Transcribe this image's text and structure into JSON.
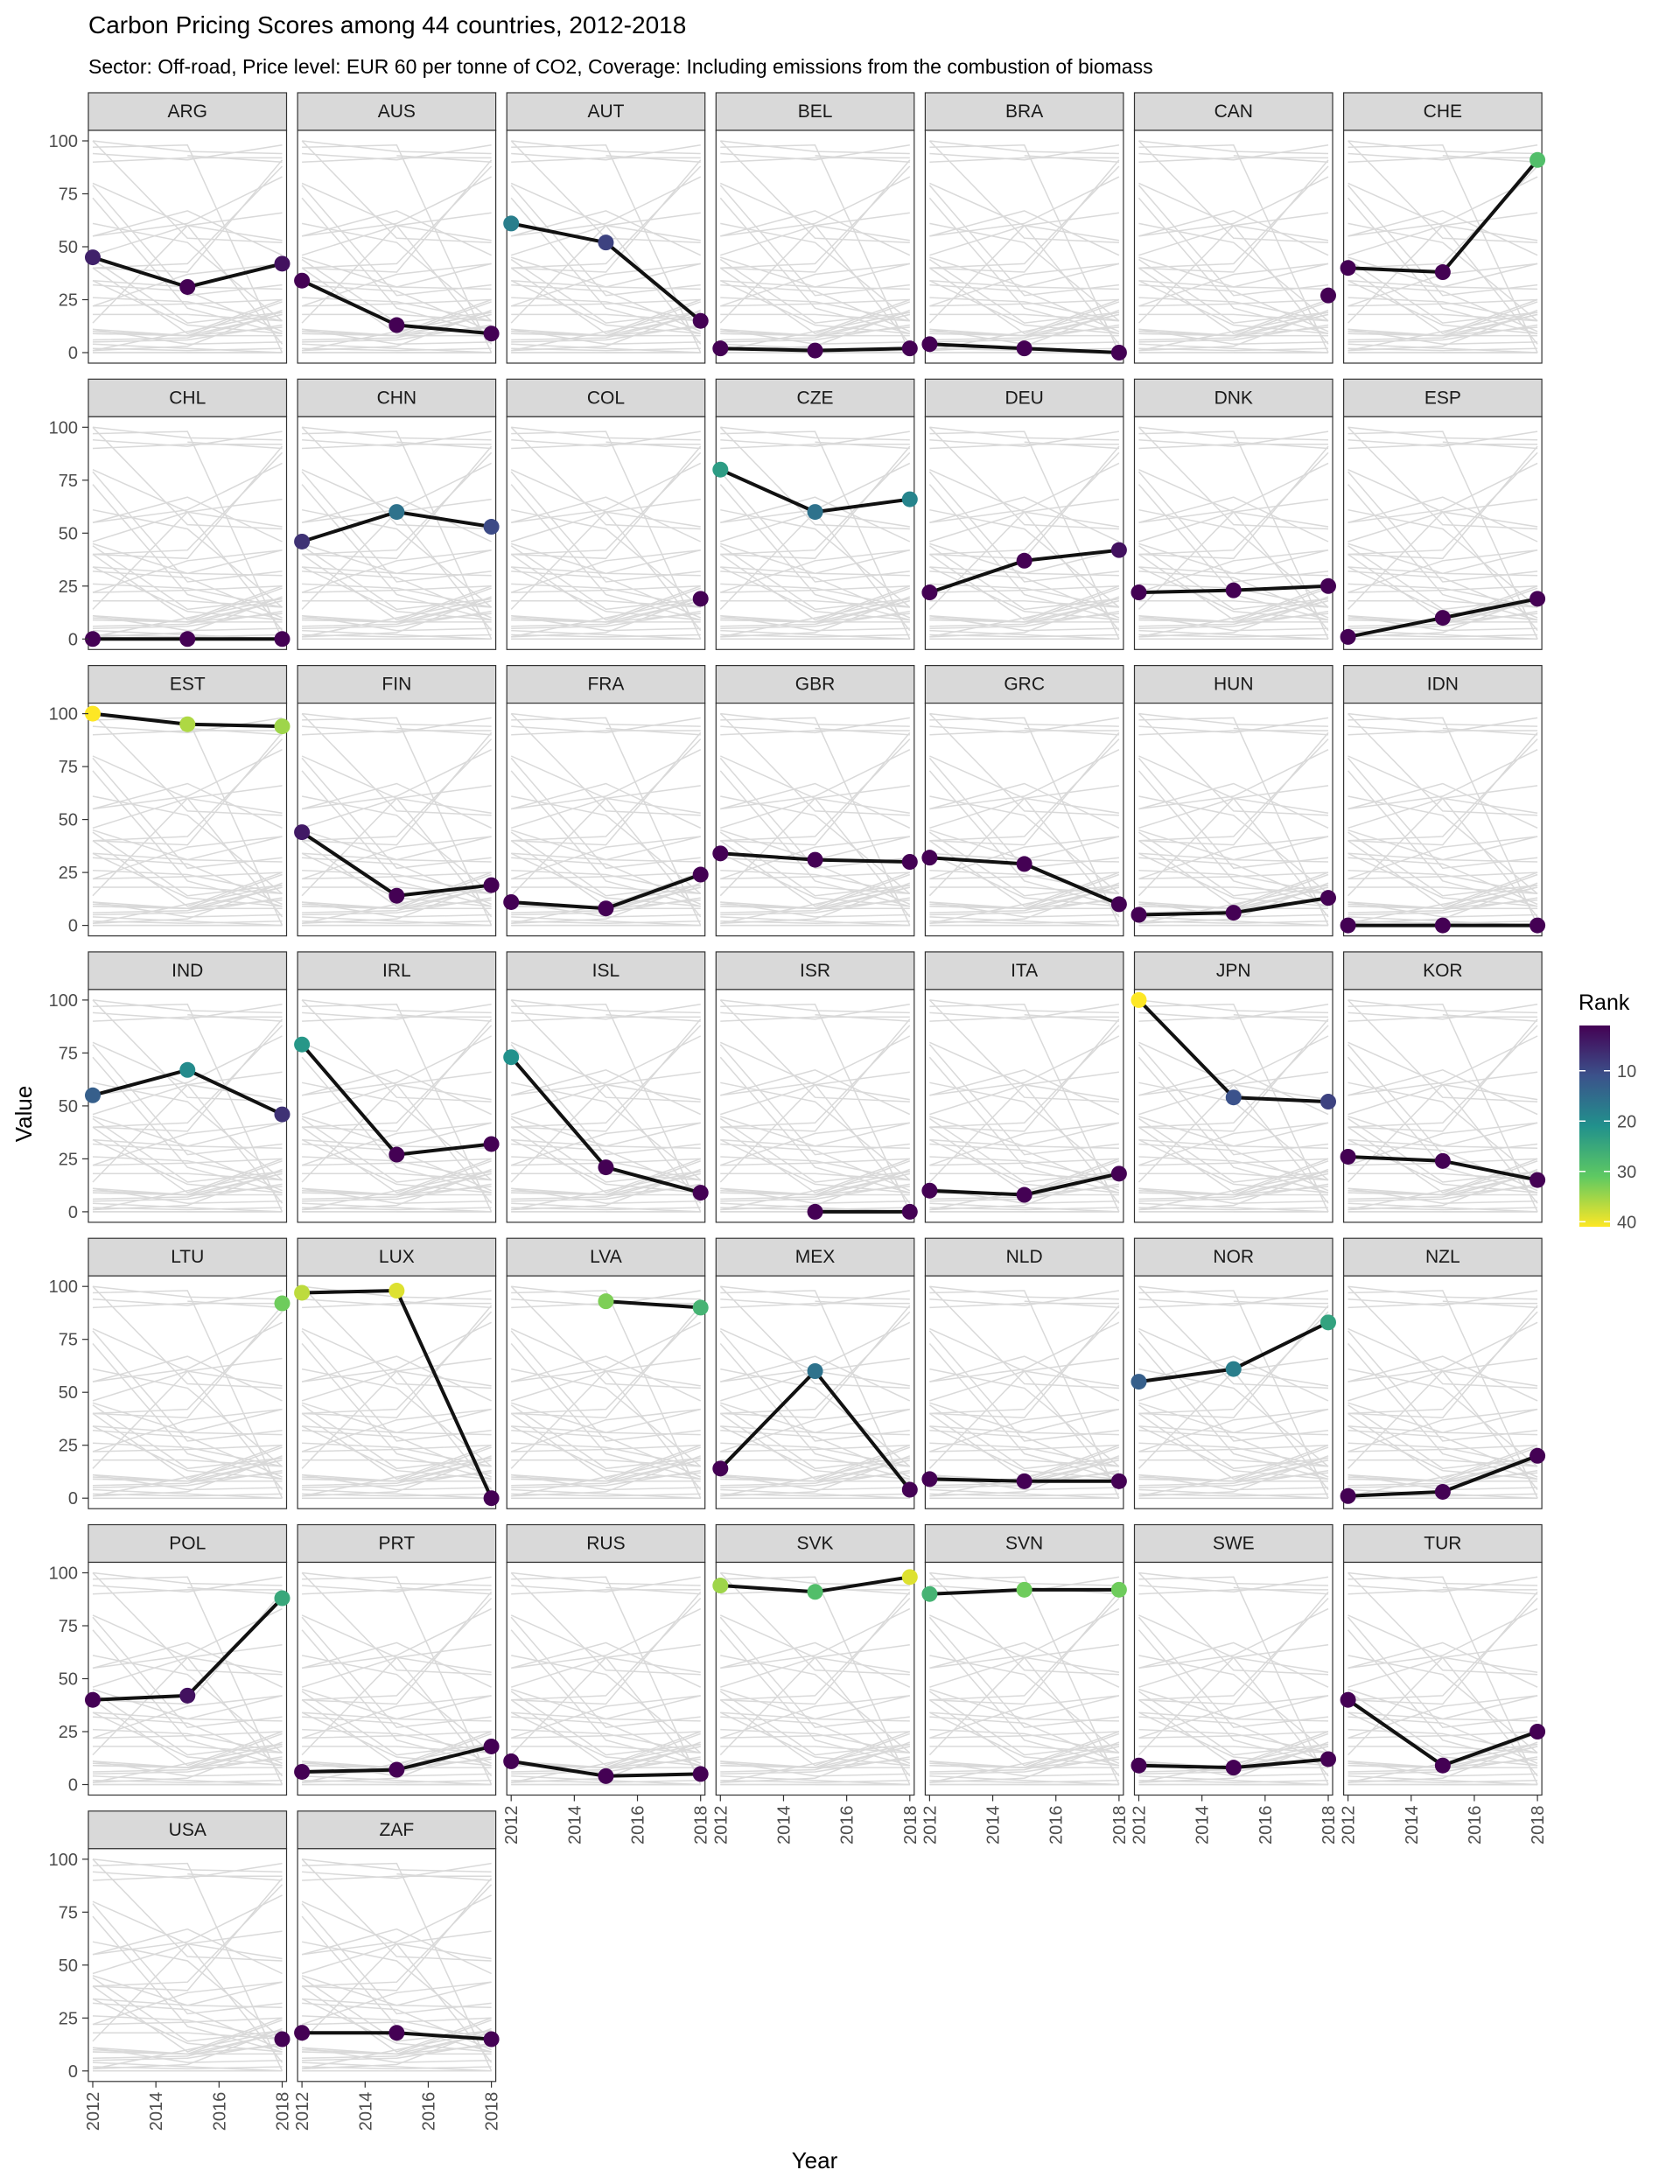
{
  "chart_data": {
    "type": "line",
    "title": "Carbon Pricing Scores among 44 countries, 2012-2018",
    "subtitle": "Sector: Off-road, Price level: EUR 60 per tonne of CO2, Coverage: Including emissions from the combustion of biomass",
    "xlabel": "Year",
    "ylabel": "Value",
    "x": [
      2012,
      2015,
      2018
    ],
    "x_ticks": [
      "2012",
      "2014",
      "2016",
      "2018"
    ],
    "xlim": [
      2012,
      2018
    ],
    "y_ticks": [
      "0",
      "25",
      "50",
      "75",
      "100"
    ],
    "ylim": [
      0,
      100
    ],
    "grid": false,
    "legend": {
      "title": "Rank",
      "placement": "right",
      "ticks": [
        "10",
        "20",
        "30",
        "40"
      ],
      "range": [
        1,
        41
      ],
      "colors": [
        "#fde725",
        "#5ec962",
        "#21918c",
        "#3b528b",
        "#440154"
      ]
    },
    "background_line_color": "#d9d9d9",
    "highlight_line_color": "#111111",
    "facet_strip_color": "#d9d9d9",
    "panels": [
      {
        "label": "ARG",
        "values": [
          45,
          31,
          42
        ]
      },
      {
        "label": "AUS",
        "values": [
          34,
          13,
          9
        ]
      },
      {
        "label": "AUT",
        "values": [
          61,
          52,
          15
        ]
      },
      {
        "label": "BEL",
        "values": [
          2,
          1,
          2
        ]
      },
      {
        "label": "BRA",
        "values": [
          4,
          2,
          0
        ]
      },
      {
        "label": "CAN",
        "values": [
          null,
          null,
          27
        ]
      },
      {
        "label": "CHE",
        "values": [
          40,
          38,
          91
        ]
      },
      {
        "label": "CHL",
        "values": [
          0,
          0,
          0
        ]
      },
      {
        "label": "CHN",
        "values": [
          46,
          60,
          53
        ]
      },
      {
        "label": "COL",
        "values": [
          null,
          null,
          19
        ]
      },
      {
        "label": "CZE",
        "values": [
          80,
          60,
          66
        ]
      },
      {
        "label": "DEU",
        "values": [
          22,
          37,
          42
        ]
      },
      {
        "label": "DNK",
        "values": [
          22,
          23,
          25
        ]
      },
      {
        "label": "ESP",
        "values": [
          1,
          10,
          19
        ]
      },
      {
        "label": "EST",
        "values": [
          100,
          95,
          94
        ]
      },
      {
        "label": "FIN",
        "values": [
          44,
          14,
          19
        ]
      },
      {
        "label": "FRA",
        "values": [
          11,
          8,
          24
        ]
      },
      {
        "label": "GBR",
        "values": [
          34,
          31,
          30
        ]
      },
      {
        "label": "GRC",
        "values": [
          32,
          29,
          10
        ]
      },
      {
        "label": "HUN",
        "values": [
          5,
          6,
          13
        ]
      },
      {
        "label": "IDN",
        "values": [
          0,
          0,
          0
        ]
      },
      {
        "label": "IND",
        "values": [
          55,
          67,
          46
        ]
      },
      {
        "label": "IRL",
        "values": [
          79,
          27,
          32
        ]
      },
      {
        "label": "ISL",
        "values": [
          73,
          21,
          9
        ]
      },
      {
        "label": "ISR",
        "values": [
          null,
          0,
          0
        ]
      },
      {
        "label": "ITA",
        "values": [
          10,
          8,
          18
        ]
      },
      {
        "label": "JPN",
        "values": [
          100,
          54,
          52
        ]
      },
      {
        "label": "KOR",
        "values": [
          26,
          24,
          15
        ]
      },
      {
        "label": "LTU",
        "values": [
          null,
          null,
          92
        ]
      },
      {
        "label": "LUX",
        "values": [
          97,
          98,
          0
        ]
      },
      {
        "label": "LVA",
        "values": [
          null,
          93,
          90
        ]
      },
      {
        "label": "MEX",
        "values": [
          14,
          60,
          4
        ]
      },
      {
        "label": "NLD",
        "values": [
          9,
          8,
          8
        ]
      },
      {
        "label": "NOR",
        "values": [
          55,
          61,
          83
        ]
      },
      {
        "label": "NZL",
        "values": [
          1,
          3,
          20
        ]
      },
      {
        "label": "POL",
        "values": [
          40,
          42,
          88
        ]
      },
      {
        "label": "PRT",
        "values": [
          6,
          7,
          18
        ]
      },
      {
        "label": "RUS",
        "values": [
          11,
          4,
          5
        ]
      },
      {
        "label": "SVK",
        "values": [
          94,
          91,
          98
        ]
      },
      {
        "label": "SVN",
        "values": [
          90,
          92,
          92
        ]
      },
      {
        "label": "SWE",
        "values": [
          9,
          8,
          12
        ]
      },
      {
        "label": "TUR",
        "values": [
          40,
          9,
          25
        ]
      },
      {
        "label": "USA",
        "values": [
          null,
          null,
          15
        ]
      },
      {
        "label": "ZAF",
        "values": [
          18,
          18,
          15
        ]
      }
    ]
  }
}
